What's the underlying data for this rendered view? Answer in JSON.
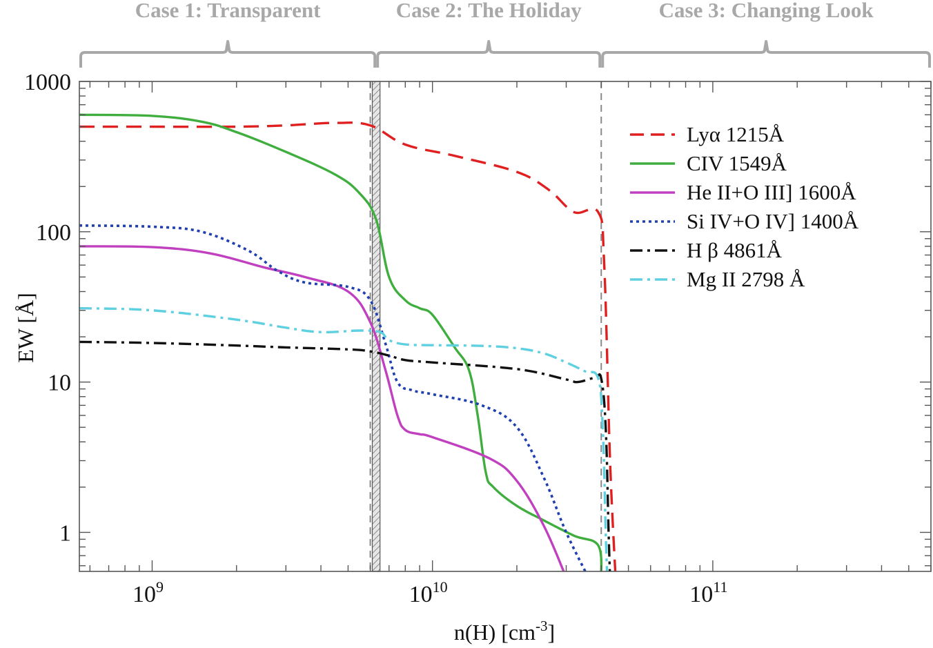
{
  "chart_data": {
    "type": "line",
    "xlabel_base": "n(H) [cm",
    "xlabel_sup": "-3",
    "xlabel_end": "]",
    "ylabel": "EW [Å]",
    "xscale": "log",
    "yscale": "log",
    "xlim": [
      550000000.0,
      600000000000.0
    ],
    "ylim": [
      0.55,
      1000
    ],
    "x_ticks": [
      {
        "value": 1000000000.0,
        "base": "10",
        "exp": "9"
      },
      {
        "value": 10000000000.0,
        "base": "10",
        "exp": "10"
      },
      {
        "value": 100000000000.0,
        "base": "10",
        "exp": "11"
      }
    ],
    "y_ticks": [
      {
        "value": 1000,
        "label": "1000"
      },
      {
        "value": 100,
        "label": "100"
      },
      {
        "value": 10,
        "label": "10"
      },
      {
        "value": 1,
        "label": "1"
      }
    ],
    "case_regions": [
      {
        "label": "Case 1: Transparent",
        "x_start": 550000000.0,
        "x_end": 6300000000.0
      },
      {
        "label": "Case 2: The Holiday",
        "x_start": 6300000000.0,
        "x_end": 40000000000.0
      },
      {
        "label": "Case 3: Changing Look",
        "x_start": 40000000000.0,
        "x_end": 600000000000.0
      }
    ],
    "shaded_band": {
      "x_start": 6100000000.0,
      "x_end": 6500000000.0
    },
    "boundary_lines": [
      6000000000.0,
      40000000000.0
    ],
    "legend_position": "upper-right",
    "series": [
      {
        "name": "Lyα 1215Å",
        "color": "#e02020",
        "style": "dash",
        "points": [
          [
            550000000.0,
            500
          ],
          [
            1000000000.0,
            500
          ],
          [
            2000000000.0,
            500
          ],
          [
            3000000000.0,
            510
          ],
          [
            4500000000.0,
            530
          ],
          [
            6000000000.0,
            510
          ],
          [
            8000000000.0,
            380
          ],
          [
            12000000000.0,
            320
          ],
          [
            20000000000.0,
            250
          ],
          [
            26000000000.0,
            190
          ],
          [
            32000000000.0,
            135
          ],
          [
            39000000000.0,
            135
          ],
          [
            41000000000.0,
            60
          ],
          [
            43000000000.0,
            3
          ],
          [
            45000000000.0,
            0.5
          ]
        ]
      },
      {
        "name": "CIV 1549Å",
        "color": "#3fae3f",
        "style": "solid",
        "points": [
          [
            550000000.0,
            600
          ],
          [
            1000000000.0,
            590
          ],
          [
            1500000000.0,
            540
          ],
          [
            2000000000.0,
            460
          ],
          [
            3000000000.0,
            340
          ],
          [
            4500000000.0,
            240
          ],
          [
            5500000000.0,
            180
          ],
          [
            6300000000.0,
            120
          ],
          [
            7000000000.0,
            50
          ],
          [
            8000000000.0,
            35
          ],
          [
            9000000000.0,
            31
          ],
          [
            10000000000.0,
            28
          ],
          [
            12000000000.0,
            17
          ],
          [
            13500000000.0,
            12
          ],
          [
            14500000000.0,
            6
          ],
          [
            15500000000.0,
            2.5
          ],
          [
            16500000000.0,
            2
          ],
          [
            20000000000.0,
            1.5
          ],
          [
            25000000000.0,
            1.2
          ],
          [
            32000000000.0,
            0.95
          ],
          [
            39000000000.0,
            0.82
          ],
          [
            40000000000.0,
            0.5
          ]
        ]
      },
      {
        "name": "He II+O III] 1600Å",
        "color": "#c040c0",
        "style": "solid",
        "points": [
          [
            550000000.0,
            80
          ],
          [
            1000000000.0,
            79
          ],
          [
            1600000000.0,
            72
          ],
          [
            2500000000.0,
            58
          ],
          [
            3500000000.0,
            50
          ],
          [
            5000000000.0,
            40
          ],
          [
            6000000000.0,
            25
          ],
          [
            6800000000.0,
            12
          ],
          [
            7500000000.0,
            6
          ],
          [
            8000000000.0,
            4.8
          ],
          [
            9000000000.0,
            4.5
          ],
          [
            10000000000.0,
            4.3
          ],
          [
            16000000000.0,
            3.1
          ],
          [
            20000000000.0,
            2.2
          ],
          [
            25000000000.0,
            1.1
          ],
          [
            30000000000.0,
            0.5
          ]
        ]
      },
      {
        "name": "Si IV+O IV] 1400Å",
        "color": "#2040b0",
        "style": "dot",
        "points": [
          [
            550000000.0,
            110
          ],
          [
            1000000000.0,
            108
          ],
          [
            1500000000.0,
            100
          ],
          [
            2200000000.0,
            75
          ],
          [
            2800000000.0,
            55
          ],
          [
            3500000000.0,
            46
          ],
          [
            5000000000.0,
            43
          ],
          [
            6000000000.0,
            35
          ],
          [
            6800000000.0,
            18
          ],
          [
            7500000000.0,
            10
          ],
          [
            8500000000.0,
            8.8
          ],
          [
            10000000000.0,
            8.3
          ],
          [
            15000000000.0,
            7
          ],
          [
            20000000000.0,
            5
          ],
          [
            25000000000.0,
            2.3
          ],
          [
            30000000000.0,
            1
          ],
          [
            36000000000.0,
            0.5
          ]
        ]
      },
      {
        "name": "H β 4861Å",
        "color": "#111111",
        "style": "dashdot",
        "points": [
          [
            550000000.0,
            18.5
          ],
          [
            1000000000.0,
            18.2
          ],
          [
            2000000000.0,
            17.5
          ],
          [
            3000000000.0,
            17
          ],
          [
            5000000000.0,
            16.5
          ],
          [
            6000000000.0,
            16
          ],
          [
            7000000000.0,
            15
          ],
          [
            8000000000.0,
            14
          ],
          [
            10000000000.0,
            13.5
          ],
          [
            20000000000.0,
            12.2
          ],
          [
            30000000000.0,
            10.4
          ],
          [
            33000000000.0,
            10
          ],
          [
            38000000000.0,
            10.7
          ],
          [
            40000000000.0,
            10.5
          ],
          [
            41500000000.0,
            5
          ],
          [
            42500000000.0,
            1
          ],
          [
            43000000000.0,
            0.5
          ]
        ]
      },
      {
        "name": "Mg II 2798 Å",
        "color": "#5fd0e0",
        "style": "dashdot",
        "points": [
          [
            550000000.0,
            31
          ],
          [
            1000000000.0,
            30
          ],
          [
            2000000000.0,
            26
          ],
          [
            3000000000.0,
            23
          ],
          [
            4000000000.0,
            21.5
          ],
          [
            5500000000.0,
            22
          ],
          [
            6500000000.0,
            21.5
          ],
          [
            7000000000.0,
            19
          ],
          [
            8000000000.0,
            17.8
          ],
          [
            10000000000.0,
            17.6
          ],
          [
            15000000000.0,
            17.4
          ],
          [
            20000000000.0,
            16.8
          ],
          [
            25000000000.0,
            15.5
          ],
          [
            30000000000.0,
            13.5
          ],
          [
            35000000000.0,
            11.8
          ],
          [
            39000000000.0,
            10.6
          ],
          [
            40500000000.0,
            5
          ],
          [
            41500000000.0,
            1
          ],
          [
            42000000000.0,
            0.5
          ]
        ]
      }
    ]
  }
}
